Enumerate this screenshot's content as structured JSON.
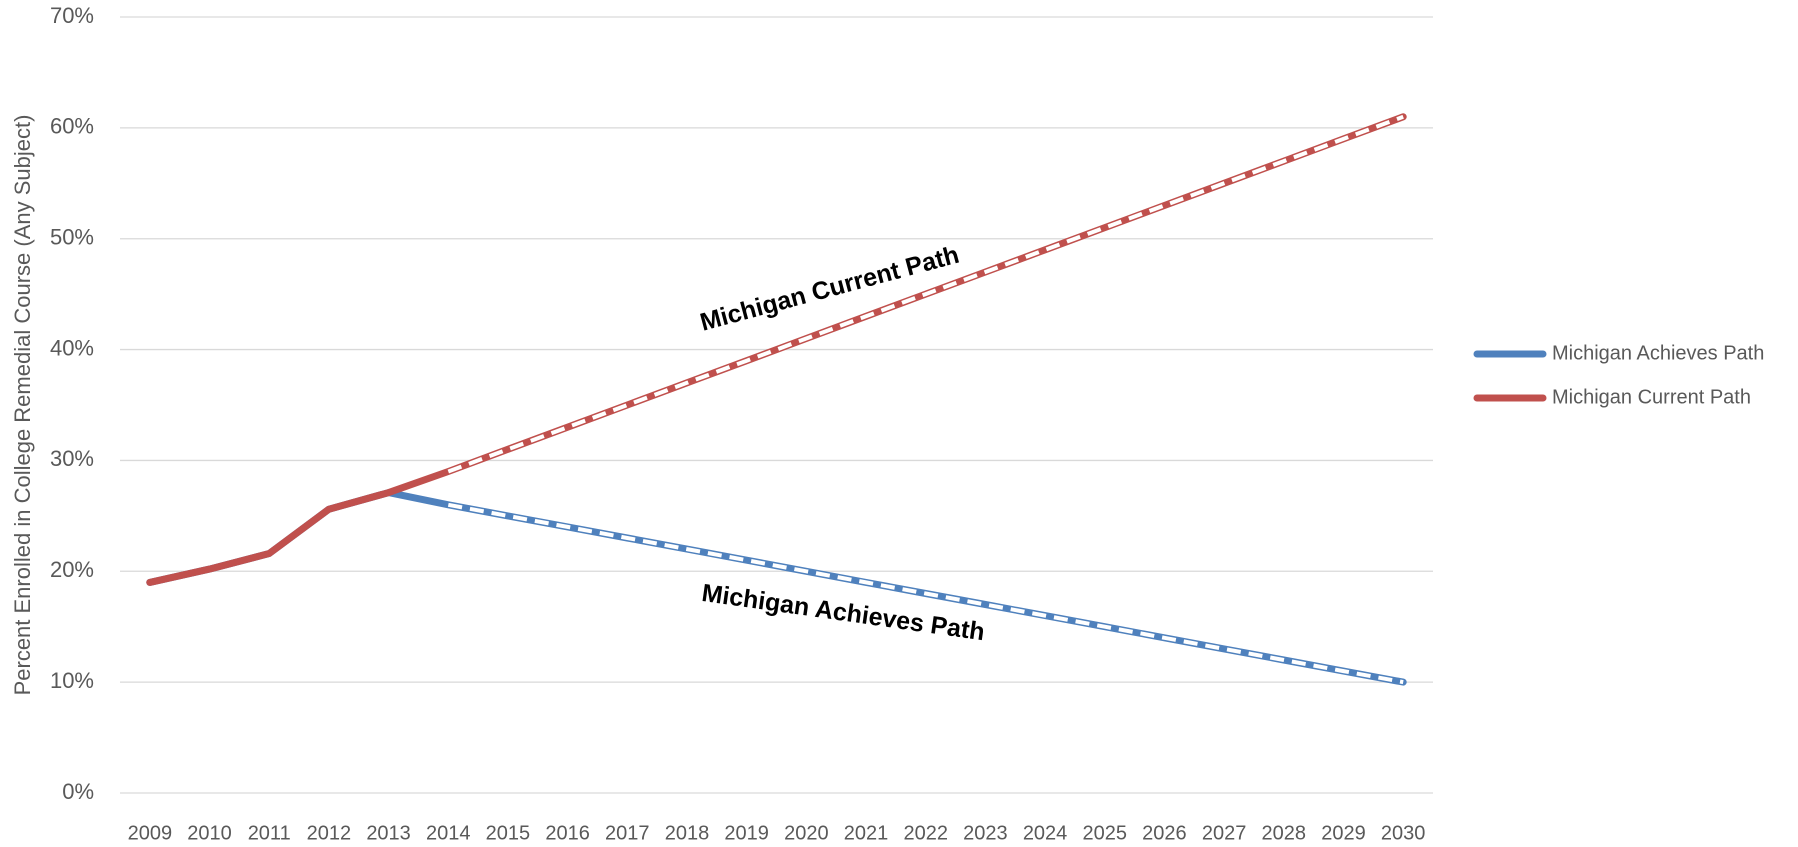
{
  "chart_data": {
    "type": "line",
    "x_axis_label": null,
    "y_axis_label": "Percent Enrolled in College Remedial Course (Any Subject)",
    "categories": [
      "2009",
      "2010",
      "2011",
      "2012",
      "2013",
      "2014",
      "2015",
      "2016",
      "2017",
      "2018",
      "2019",
      "2020",
      "2021",
      "2022",
      "2023",
      "2024",
      "2025",
      "2026",
      "2027",
      "2028",
      "2029",
      "2030"
    ],
    "series": [
      {
        "name": "Michigan Achieves Path",
        "color": "#4f81bd",
        "projection_from": "2014",
        "values": [
          19,
          20.2,
          21.6,
          25.6,
          27.1,
          26,
          25,
          24,
          23,
          22,
          21,
          20,
          19,
          18,
          17,
          16,
          15,
          14,
          13,
          12,
          11,
          10
        ]
      },
      {
        "name": "Michigan Current Path",
        "color": "#c0504d",
        "projection_from": "2014",
        "values": [
          19,
          20.2,
          21.6,
          25.6,
          27.1,
          29,
          31,
          33,
          35,
          37,
          39,
          41,
          43,
          45,
          47,
          49,
          51,
          53,
          55,
          57,
          59,
          61
        ]
      }
    ],
    "annotations": [
      "Michigan Current Path",
      "Michigan Achieves Path"
    ],
    "ylim": [
      0,
      70
    ],
    "yticks": [
      {
        "value": 0,
        "label": "0%"
      },
      {
        "value": 10,
        "label": "10%"
      },
      {
        "value": 20,
        "label": "20%"
      },
      {
        "value": 30,
        "label": "30%"
      },
      {
        "value": 40,
        "label": "40%"
      },
      {
        "value": 50,
        "label": "50%"
      },
      {
        "value": 60,
        "label": "60%"
      },
      {
        "value": 70,
        "label": "70%"
      }
    ],
    "grid": true,
    "legend": "right"
  }
}
